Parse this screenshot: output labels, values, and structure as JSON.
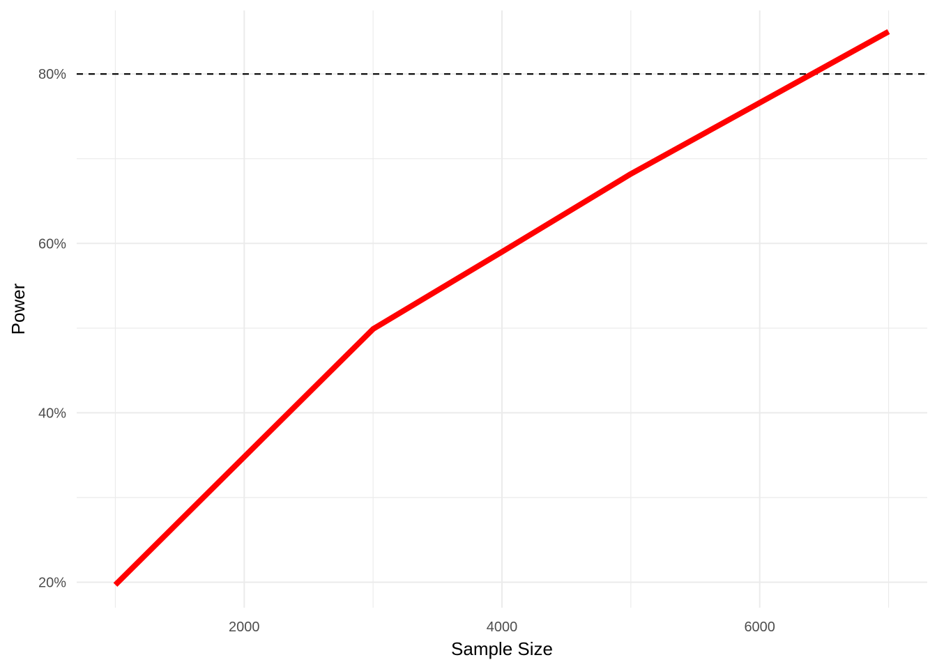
{
  "chart_data": {
    "type": "line",
    "xlabel": "Sample Size",
    "ylabel": "Power",
    "xlim": [
      700,
      7300
    ],
    "ylim": [
      0.17,
      0.875
    ],
    "x_ticks": [
      2000,
      4000,
      6000
    ],
    "x_tick_labels": [
      "2000",
      "4000",
      "6000"
    ],
    "x_minor_ticks": [
      1000,
      3000,
      5000,
      7000
    ],
    "y_ticks": [
      0.2,
      0.4,
      0.6,
      0.8
    ],
    "y_tick_labels": [
      "20%",
      "40%",
      "60%",
      "80%"
    ],
    "y_minor_ticks": [
      0.3,
      0.5,
      0.7
    ],
    "grid": true,
    "series": [
      {
        "color": "#ff0000",
        "x": [
          1000,
          2000,
          3000,
          4000,
          5000,
          6000,
          7000
        ],
        "values": [
          0.197,
          0.348,
          0.499,
          0.59,
          0.682,
          0.766,
          0.85
        ]
      }
    ],
    "reference_lines": [
      {
        "orientation": "horizontal",
        "value": 0.8,
        "style": "dashed",
        "color": "#000000"
      }
    ]
  }
}
